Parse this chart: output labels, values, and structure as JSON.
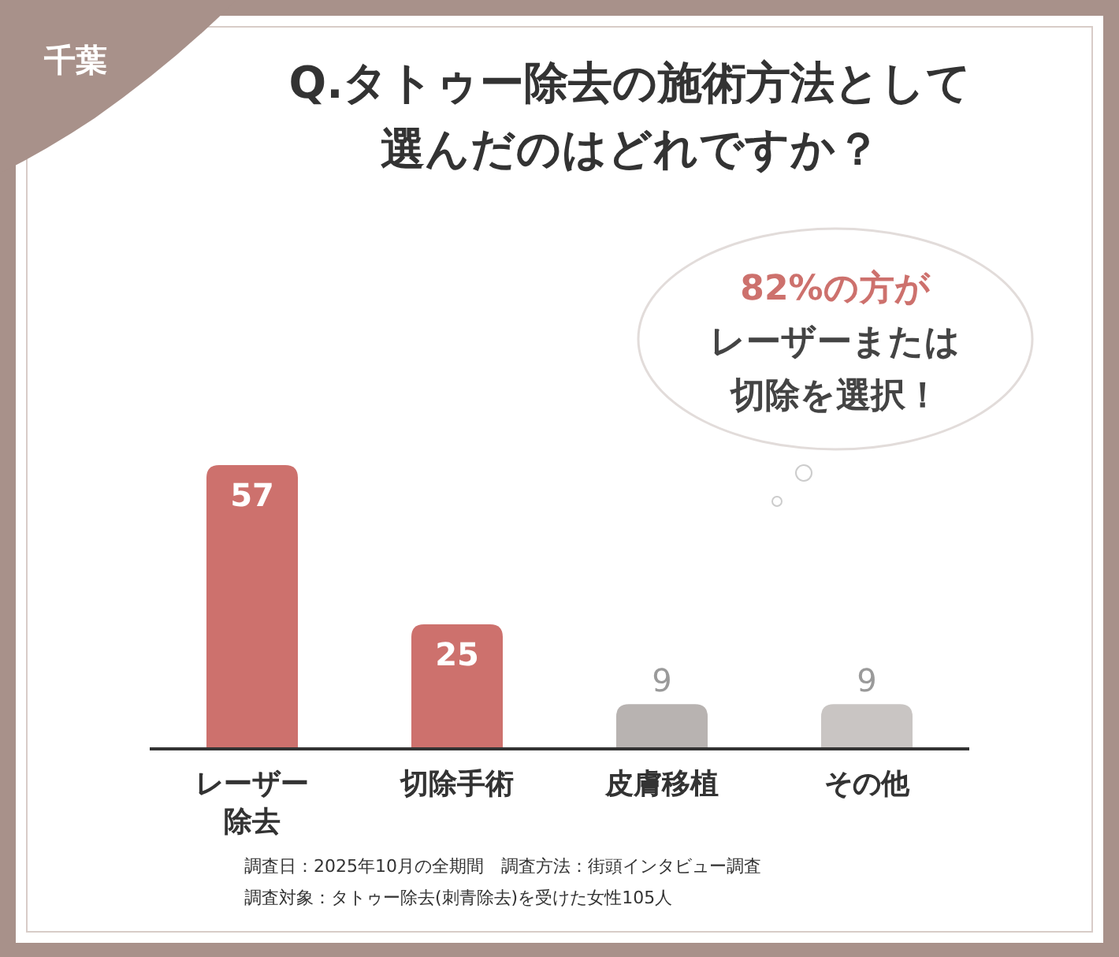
{
  "chart_data": {
    "type": "bar",
    "title": "Q.タトゥー除去の施術方法として選んだのはどれですか？",
    "categories": [
      "レーザー除去",
      "切除手術",
      "皮膚移植",
      "その他"
    ],
    "values": [
      57,
      25,
      9,
      9
    ],
    "colors": [
      "#cd716d",
      "#cd716d",
      "#b8b3b1",
      "#c9c5c3"
    ],
    "data_labels": true,
    "annotations": [
      "千葉",
      "82%の方が",
      "レーザーまたは",
      "切除を選択！",
      "調査日：2025年10月の全期間　調査方法：街頭インタビュー調査",
      "調査対象：タトゥー除去(刺青除去)を受けた女性105人"
    ]
  }
}
